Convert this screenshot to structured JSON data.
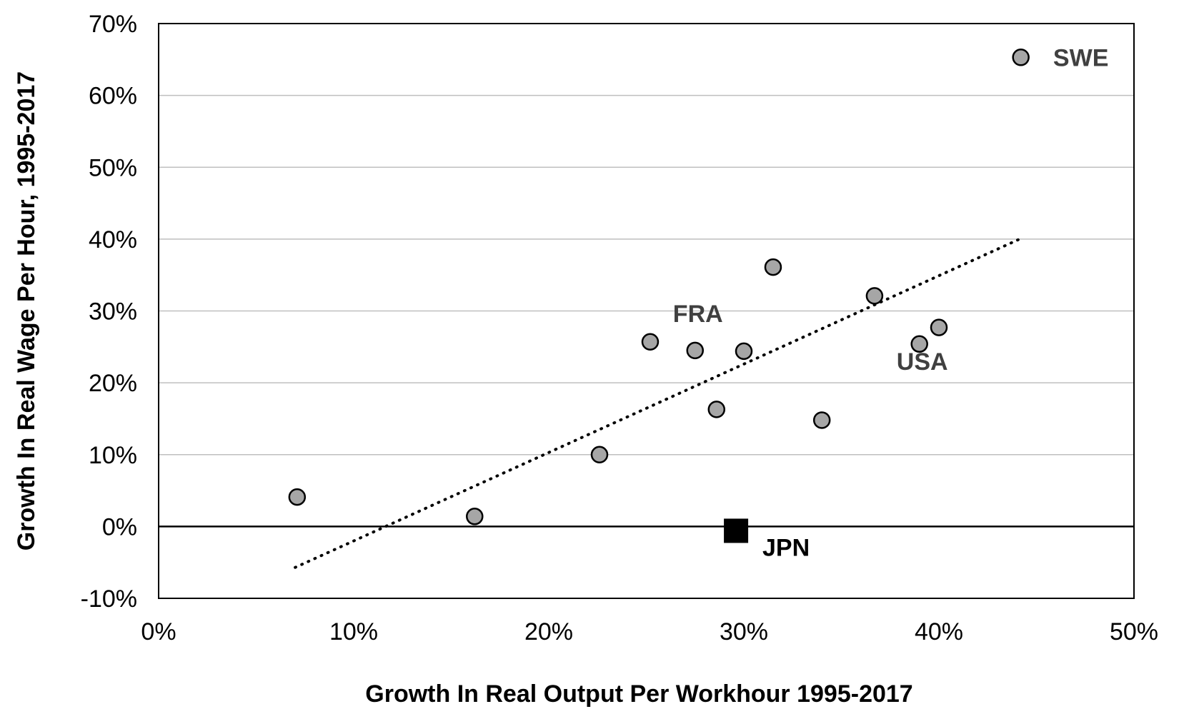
{
  "chart_data": {
    "type": "scatter",
    "xlabel": "Growth In Real Output Per Workhour 1995-2017",
    "ylabel": "Growth In Real Wage Per Hour, 1995-2017",
    "xlim": [
      0,
      50
    ],
    "ylim": [
      -10,
      70
    ],
    "x_ticks": [
      0,
      10,
      20,
      30,
      40,
      50
    ],
    "y_ticks": [
      -10,
      0,
      10,
      20,
      30,
      40,
      50,
      60,
      70
    ],
    "x_tick_labels": [
      "0%",
      "10%",
      "20%",
      "30%",
      "40%",
      "50%"
    ],
    "y_tick_labels": [
      "-10%",
      "0%",
      "10%",
      "20%",
      "30%",
      "40%",
      "50%",
      "60%",
      "70%"
    ],
    "grid": "horizontal",
    "points": [
      {
        "x": 7.1,
        "y": 4.1,
        "label": ""
      },
      {
        "x": 16.2,
        "y": 1.4,
        "label": ""
      },
      {
        "x": 22.6,
        "y": 10.0,
        "label": ""
      },
      {
        "x": 25.2,
        "y": 25.7,
        "label": ""
      },
      {
        "x": 27.5,
        "y": 24.5,
        "label": "FRA"
      },
      {
        "x": 28.6,
        "y": 16.3,
        "label": ""
      },
      {
        "x": 30.0,
        "y": 24.4,
        "label": ""
      },
      {
        "x": 31.5,
        "y": 36.1,
        "label": ""
      },
      {
        "x": 34.0,
        "y": 14.8,
        "label": ""
      },
      {
        "x": 36.7,
        "y": 32.1,
        "label": ""
      },
      {
        "x": 39.0,
        "y": 25.4,
        "label": "USA"
      },
      {
        "x": 40.0,
        "y": 27.7,
        "label": ""
      },
      {
        "x": 44.2,
        "y": 65.3,
        "label": "SWE"
      }
    ],
    "highlight": {
      "x": 29.6,
      "y": -0.6,
      "label": "JPN",
      "marker": "square"
    },
    "trendline": {
      "style": "dotted",
      "x": [
        7.0,
        44.3
      ],
      "y": [
        -5.7,
        40.2
      ]
    },
    "colors": {
      "point_fill": "#a6a6a6",
      "point_stroke": "#000000",
      "label": "#404040",
      "highlight": "#000000",
      "grid": "#bfbfbf"
    }
  }
}
